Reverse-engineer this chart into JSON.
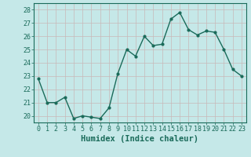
{
  "x": [
    0,
    1,
    2,
    3,
    4,
    5,
    6,
    7,
    8,
    9,
    10,
    11,
    12,
    13,
    14,
    15,
    16,
    17,
    18,
    19,
    20,
    21,
    22,
    23
  ],
  "y": [
    22.8,
    21.0,
    21.0,
    21.4,
    19.8,
    20.0,
    19.9,
    19.8,
    20.6,
    23.2,
    25.0,
    24.5,
    26.0,
    25.3,
    25.4,
    27.3,
    27.8,
    26.5,
    26.1,
    26.4,
    26.3,
    25.0,
    23.5,
    23.0
  ],
  "line_color": "#1a6b5a",
  "marker": "o",
  "markersize": 2.0,
  "linewidth": 1.0,
  "bg_color": "#c5e8e8",
  "grid_color": "#b0d8d8",
  "xlabel": "Humidex (Indice chaleur)",
  "xlabel_fontsize": 7.5,
  "xlabel_fontweight": "bold",
  "ylabel_ticks": [
    20,
    21,
    22,
    23,
    24,
    25,
    26,
    27,
    28
  ],
  "ylim": [
    19.5,
    28.5
  ],
  "xlim": [
    -0.5,
    23.5
  ],
  "xticks": [
    0,
    1,
    2,
    3,
    4,
    5,
    6,
    7,
    8,
    9,
    10,
    11,
    12,
    13,
    14,
    15,
    16,
    17,
    18,
    19,
    20,
    21,
    22,
    23
  ],
  "tick_fontsize": 6.0,
  "tick_color": "#1a6b5a"
}
